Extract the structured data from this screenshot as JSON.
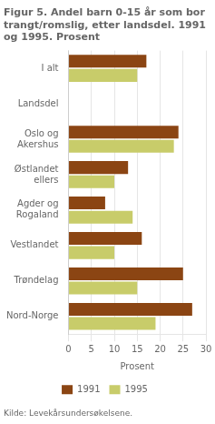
{
  "chart_data": {
    "type": "bar",
    "orientation": "horizontal",
    "title": "Figur 5. Andel barn 0-15 år som bor\ntrangt/romslig, etter landsdel. 1991\nog 1995. Prosent",
    "footer": "Kilde: Levekårsundersøkelsene.",
    "categories": [
      "I alt",
      "Landsdel",
      "Oslo og\nAkershus",
      "Østlandet\nellers",
      "Agder og\nRogaland",
      "Vestlandet",
      "Trøndelag",
      "Nord-Norge"
    ],
    "series": [
      {
        "name": "1991",
        "color": "#8B4513",
        "values": [
          17,
          null,
          24,
          13,
          8,
          16,
          25,
          27
        ]
      },
      {
        "name": "1995",
        "color": "#C8CC6A",
        "values": [
          15,
          null,
          23,
          10,
          14,
          10,
          15,
          19
        ]
      }
    ],
    "xlabel": "Prosent",
    "xlim": [
      0,
      30
    ],
    "xticks": [
      0,
      5,
      10,
      15,
      20,
      25,
      30
    ],
    "grid": true,
    "legend": "bottom"
  }
}
